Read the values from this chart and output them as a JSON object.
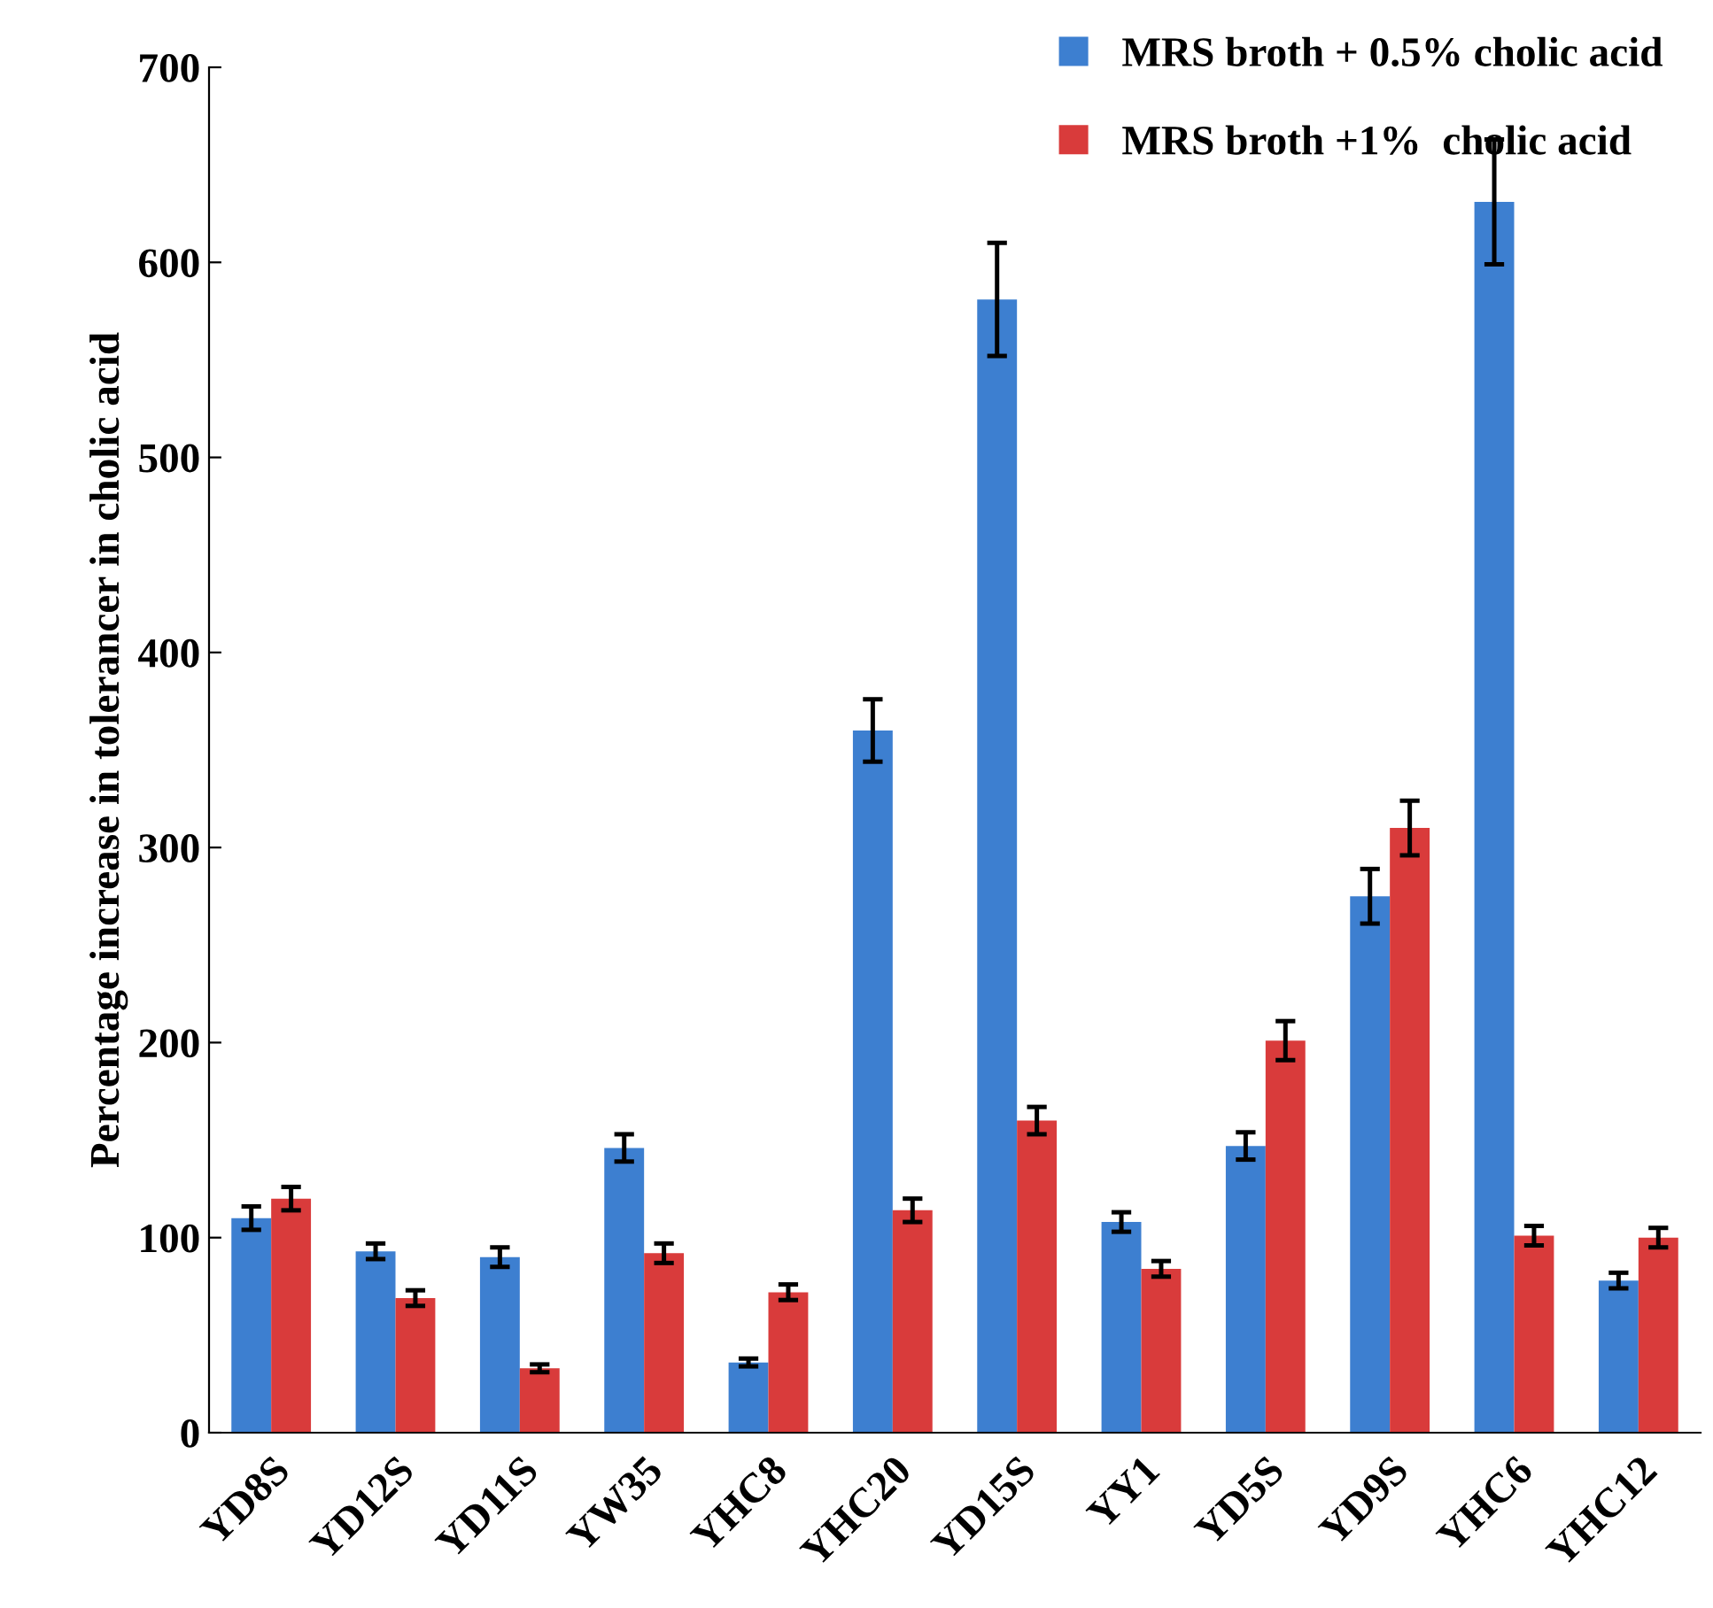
{
  "chart_data": {
    "type": "bar",
    "ylabel": "Percentage increase in tolerancer in cholic acid",
    "categories": [
      "YD8S",
      "YD12S",
      "YD11S",
      "YW35",
      "YHC8",
      "YHC20",
      "YD15S",
      "YY1",
      "YD5S",
      "YD9S",
      "YHC6",
      "YHC12"
    ],
    "series": [
      {
        "name": "MRS broth + 0.5% cholic acid",
        "color": "#3d7fd0",
        "values": [
          110,
          93,
          90,
          146,
          36,
          360,
          581,
          108,
          147,
          275,
          631,
          78
        ],
        "errors": [
          6,
          4,
          5,
          7,
          2,
          16,
          29,
          5,
          7,
          14,
          32,
          4
        ]
      },
      {
        "name": "MRS broth +1%  cholic acid",
        "color": "#d93b3b",
        "values": [
          120,
          69,
          33,
          92,
          72,
          114,
          160,
          84,
          201,
          310,
          101,
          100
        ],
        "errors": [
          6,
          4,
          2,
          5,
          4,
          6,
          7,
          4,
          10,
          14,
          5,
          5
        ]
      }
    ],
    "ylim": [
      0,
      700
    ],
    "yticks": [
      0,
      100,
      200,
      300,
      400,
      500,
      600,
      700
    ],
    "grid": false,
    "legend": "top right"
  }
}
